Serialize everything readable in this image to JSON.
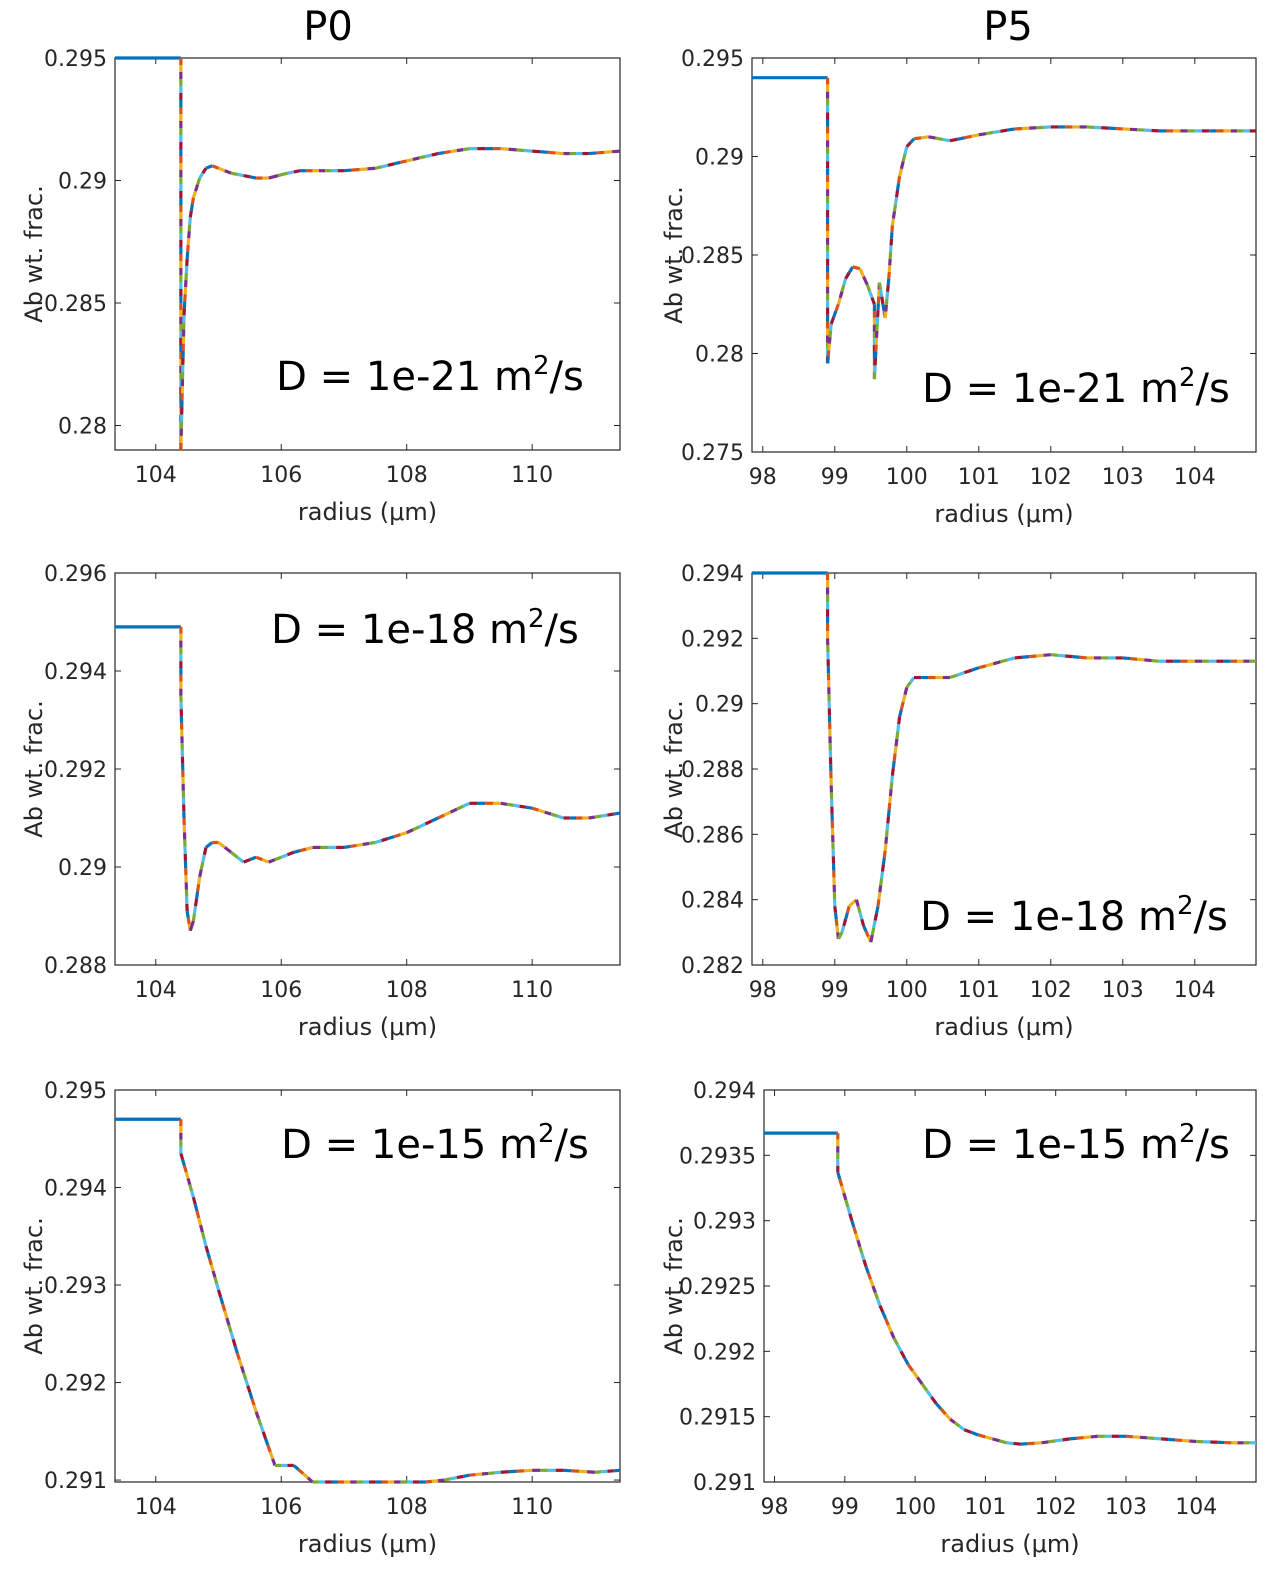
{
  "column_titles": [
    "P0",
    "P5"
  ],
  "colors": [
    "#0072BD",
    "#D95319",
    "#EDB120",
    "#7E2F8E",
    "#77AC30",
    "#4DBEEE",
    "#A2142F"
  ],
  "chart_data": [
    {
      "type": "line",
      "column": "P0",
      "xlabel": "radius (μm)",
      "ylabel": "Ab wt. frac.",
      "annotation": {
        "prefix": "D = 1e-21 m",
        "sup": "2",
        "suffix": "/s"
      },
      "xlim": [
        103.35,
        111.4
      ],
      "ylim": [
        0.279,
        0.295
      ],
      "xticks": [
        104,
        106,
        108,
        110
      ],
      "yticks": [
        0.28,
        0.285,
        0.29,
        0.295
      ],
      "ytick_labels": [
        "0.28",
        "0.285",
        "0.29",
        "0.295"
      ],
      "x": [
        103.35,
        104.4,
        104.4,
        104.45,
        104.5,
        104.55,
        104.6,
        104.7,
        104.8,
        104.9,
        105.0,
        105.2,
        105.4,
        105.6,
        105.8,
        105.95,
        106.1,
        106.3,
        106.6,
        107.0,
        107.5,
        108.0,
        108.5,
        109.0,
        109.5,
        110.0,
        110.5,
        110.9,
        111.4
      ],
      "y": [
        0.295,
        0.295,
        0.279,
        0.2845,
        0.2868,
        0.2885,
        0.2893,
        0.2901,
        0.2905,
        0.2906,
        0.2905,
        0.2903,
        0.2902,
        0.2901,
        0.2901,
        0.2902,
        0.2903,
        0.2904,
        0.2904,
        0.2904,
        0.2905,
        0.2908,
        0.2911,
        0.2913,
        0.2913,
        0.2912,
        0.2911,
        0.2911,
        0.2912
      ]
    },
    {
      "type": "line",
      "column": "P5",
      "xlabel": "radius (μm)",
      "ylabel": "Ab wt. frac.",
      "annotation": {
        "prefix": "D = 1e-21 m",
        "sup": "2",
        "suffix": "/s"
      },
      "xlim": [
        97.85,
        104.85
      ],
      "ylim": [
        0.275,
        0.295
      ],
      "xticks": [
        98,
        99,
        100,
        101,
        102,
        103,
        104
      ],
      "yticks": [
        0.275,
        0.28,
        0.285,
        0.29,
        0.295
      ],
      "ytick_labels": [
        "0.275",
        "0.28",
        "0.285",
        "0.29",
        "0.295"
      ],
      "x": [
        97.85,
        98.9,
        98.9,
        98.95,
        99.05,
        99.15,
        99.25,
        99.35,
        99.45,
        99.55,
        99.55,
        99.62,
        99.7,
        99.75,
        99.8,
        99.9,
        100.0,
        100.1,
        100.3,
        100.6,
        101.0,
        101.5,
        102.0,
        102.5,
        103.0,
        103.5,
        104.0,
        104.5,
        104.85
      ],
      "y": [
        0.294,
        0.294,
        0.2795,
        0.2815,
        0.2825,
        0.2838,
        0.2844,
        0.2843,
        0.2835,
        0.2825,
        0.2787,
        0.2836,
        0.2818,
        0.2838,
        0.2865,
        0.289,
        0.2905,
        0.2909,
        0.291,
        0.2908,
        0.2911,
        0.2914,
        0.2915,
        0.2915,
        0.2914,
        0.2913,
        0.2913,
        0.2913,
        0.2913
      ]
    },
    {
      "type": "line",
      "column": "P0",
      "xlabel": "radius (μm)",
      "ylabel": "Ab wt. frac.",
      "annotation": {
        "prefix": "D = 1e-18 m",
        "sup": "2",
        "suffix": "/s"
      },
      "xlim": [
        103.35,
        111.4
      ],
      "ylim": [
        0.288,
        0.296
      ],
      "xticks": [
        104,
        106,
        108,
        110
      ],
      "yticks": [
        0.288,
        0.29,
        0.292,
        0.294,
        0.296
      ],
      "ytick_labels": [
        "0.288",
        "0.29",
        "0.292",
        "0.294",
        "0.296"
      ],
      "x": [
        103.35,
        104.4,
        104.4,
        104.45,
        104.5,
        104.55,
        104.6,
        104.7,
        104.8,
        104.9,
        105.0,
        105.2,
        105.4,
        105.6,
        105.8,
        106.0,
        106.2,
        106.5,
        107.0,
        107.5,
        108.0,
        108.5,
        109.0,
        109.5,
        110.0,
        110.5,
        110.9,
        111.4
      ],
      "y": [
        0.2949,
        0.2949,
        0.2935,
        0.291,
        0.2891,
        0.2887,
        0.2889,
        0.2898,
        0.2904,
        0.2905,
        0.2905,
        0.2903,
        0.2901,
        0.2902,
        0.2901,
        0.2902,
        0.2903,
        0.2904,
        0.2904,
        0.2905,
        0.2907,
        0.291,
        0.2913,
        0.2913,
        0.2912,
        0.291,
        0.291,
        0.2911
      ]
    },
    {
      "type": "line",
      "column": "P5",
      "xlabel": "radius (μm)",
      "ylabel": "Ab wt. frac.",
      "annotation": {
        "prefix": "D = 1e-18 m",
        "sup": "2",
        "suffix": "/s"
      },
      "xlim": [
        97.85,
        104.85
      ],
      "ylim": [
        0.282,
        0.294
      ],
      "xticks": [
        98,
        99,
        100,
        101,
        102,
        103,
        104
      ],
      "yticks": [
        0.282,
        0.284,
        0.286,
        0.288,
        0.29,
        0.292,
        0.294
      ],
      "ytick_labels": [
        "0.282",
        "0.284",
        "0.286",
        "0.288",
        "0.29",
        "0.292",
        "0.294"
      ],
      "x": [
        97.85,
        98.9,
        98.9,
        98.95,
        99.0,
        99.05,
        99.1,
        99.2,
        99.3,
        99.4,
        99.5,
        99.6,
        99.7,
        99.8,
        99.9,
        100.0,
        100.1,
        100.3,
        100.6,
        101.0,
        101.5,
        102.0,
        102.5,
        103.0,
        103.5,
        104.0,
        104.5,
        104.85
      ],
      "y": [
        0.294,
        0.294,
        0.292,
        0.2875,
        0.2838,
        0.2828,
        0.283,
        0.2838,
        0.284,
        0.2832,
        0.2827,
        0.2838,
        0.2855,
        0.2878,
        0.2896,
        0.2905,
        0.2908,
        0.2908,
        0.2908,
        0.2911,
        0.2914,
        0.2915,
        0.2914,
        0.2914,
        0.2913,
        0.2913,
        0.2913,
        0.2913
      ]
    },
    {
      "type": "line",
      "column": "P0",
      "xlabel": "radius (μm)",
      "ylabel": "Ab wt. frac.",
      "annotation": {
        "prefix": "D = 1e-15 m",
        "sup": "2",
        "suffix": "/s"
      },
      "xlim": [
        103.35,
        111.4
      ],
      "ylim": [
        0.29098,
        0.295
      ],
      "xticks": [
        104,
        106,
        108,
        110
      ],
      "yticks": [
        0.291,
        0.292,
        0.293,
        0.294,
        0.295
      ],
      "ytick_labels": [
        "0.291",
        "0.292",
        "0.293",
        "0.294",
        "0.295"
      ],
      "x": [
        103.35,
        104.4,
        104.4,
        104.6,
        104.8,
        105.0,
        105.3,
        105.6,
        105.9,
        106.2,
        106.5,
        106.8,
        107.1,
        107.4,
        107.7,
        108.0,
        108.3,
        108.6,
        109.0,
        109.5,
        110.0,
        110.5,
        111.0,
        111.4
      ],
      "y": [
        0.2947,
        0.2947,
        0.29435,
        0.2939,
        0.2934,
        0.29295,
        0.2923,
        0.2917,
        0.29115,
        0.29115,
        0.29085,
        0.29065,
        0.2905,
        0.29097,
        0.29097,
        0.29097,
        0.29098,
        0.291,
        0.29105,
        0.29108,
        0.2911,
        0.2911,
        0.29108,
        0.2911
      ]
    },
    {
      "type": "line",
      "column": "P5",
      "xlabel": "radius (μm)",
      "ylabel": "Ab wt. frac.",
      "annotation": {
        "prefix": "D = 1e-15 m",
        "sup": "2",
        "suffix": "/s"
      },
      "xlim": [
        97.85,
        104.85
      ],
      "ylim": [
        0.291,
        0.294
      ],
      "xticks": [
        98,
        99,
        100,
        101,
        102,
        103,
        104
      ],
      "yticks": [
        0.291,
        0.2915,
        0.292,
        0.2925,
        0.293,
        0.2935,
        0.294
      ],
      "ytick_labels": [
        "0.291",
        "0.2915",
        "0.292",
        "0.2925",
        "0.293",
        "0.2935",
        "0.294"
      ],
      "x": [
        97.85,
        98.9,
        98.9,
        99.1,
        99.3,
        99.5,
        99.7,
        99.9,
        100.1,
        100.3,
        100.5,
        100.7,
        100.9,
        101.1,
        101.3,
        101.5,
        101.8,
        102.2,
        102.6,
        103.0,
        103.5,
        104.0,
        104.5,
        104.85
      ],
      "y": [
        0.29367,
        0.29367,
        0.29337,
        0.293,
        0.29265,
        0.29235,
        0.2921,
        0.2919,
        0.29175,
        0.2916,
        0.29148,
        0.2914,
        0.29136,
        0.29133,
        0.2913,
        0.29129,
        0.2913,
        0.29133,
        0.29135,
        0.29135,
        0.29133,
        0.29131,
        0.2913,
        0.2913
      ]
    }
  ]
}
